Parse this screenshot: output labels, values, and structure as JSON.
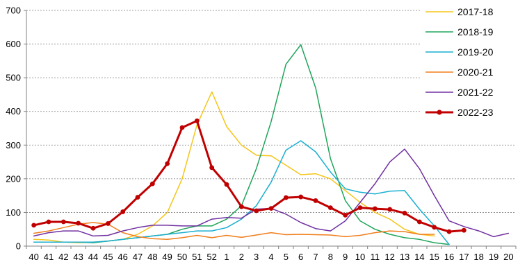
{
  "chart_data": {
    "type": "line",
    "x": [
      "40",
      "41",
      "42",
      "43",
      "44",
      "45",
      "46",
      "47",
      "48",
      "49",
      "50",
      "51",
      "52",
      "1",
      "2",
      "3",
      "4",
      "5",
      "6",
      "7",
      "8",
      "9",
      "10",
      "11",
      "12",
      "13",
      "14",
      "15",
      "16",
      "17",
      "18",
      "19",
      "20"
    ],
    "ylim": [
      0,
      700
    ],
    "yticks": [
      "0",
      "100",
      "200",
      "300",
      "400",
      "500",
      "600",
      "700"
    ],
    "grid": "horizontal dashed",
    "legend_position": "right",
    "series": [
      {
        "name": "2017-18",
        "color": "#F5C518",
        "marker": false,
        "values": [
          20,
          18,
          12,
          10,
          12,
          15,
          20,
          35,
          60,
          100,
          200,
          360,
          458,
          355,
          300,
          270,
          268,
          240,
          212,
          215,
          200,
          165,
          130,
          100,
          80,
          50,
          35,
          30,
          null,
          null,
          null,
          null,
          null
        ]
      },
      {
        "name": "2018-19",
        "color": "#1FA55A",
        "marker": false,
        "values": [
          12,
          12,
          12,
          12,
          10,
          15,
          20,
          25,
          30,
          35,
          50,
          60,
          60,
          80,
          120,
          230,
          370,
          540,
          598,
          470,
          260,
          135,
          75,
          50,
          35,
          25,
          20,
          10,
          5,
          null,
          null,
          null,
          null
        ]
      },
      {
        "name": "2019-20",
        "color": "#1AAFD0",
        "marker": false,
        "values": [
          12,
          12,
          12,
          12,
          12,
          15,
          20,
          25,
          30,
          35,
          40,
          45,
          45,
          55,
          80,
          120,
          190,
          285,
          313,
          280,
          220,
          170,
          160,
          155,
          163,
          165,
          110,
          60,
          5,
          null,
          null,
          null,
          null
        ]
      },
      {
        "name": "2020-21",
        "color": "#F07D1A",
        "marker": false,
        "values": [
          38,
          45,
          55,
          65,
          70,
          65,
          40,
          28,
          22,
          20,
          25,
          32,
          25,
          32,
          26,
          33,
          40,
          34,
          35,
          34,
          33,
          28,
          32,
          40,
          45,
          43,
          35,
          35,
          null,
          null,
          null,
          null,
          null
        ]
      },
      {
        "name": "2021-22",
        "color": "#7030A0",
        "marker": false,
        "values": [
          30,
          40,
          45,
          45,
          30,
          32,
          45,
          55,
          62,
          62,
          60,
          60,
          80,
          85,
          83,
          110,
          112,
          95,
          70,
          52,
          45,
          75,
          130,
          185,
          250,
          288,
          230,
          150,
          75,
          58,
          45,
          28,
          38
        ]
      },
      {
        "name": "2022-23",
        "color": "#C00000",
        "marker": true,
        "values": [
          62,
          72,
          72,
          68,
          53,
          67,
          102,
          145,
          185,
          245,
          352,
          372,
          233,
          183,
          117,
          105,
          112,
          144,
          146,
          135,
          114,
          92,
          114,
          111,
          109,
          98,
          72,
          56,
          43,
          47,
          null,
          null,
          null
        ]
      }
    ]
  }
}
